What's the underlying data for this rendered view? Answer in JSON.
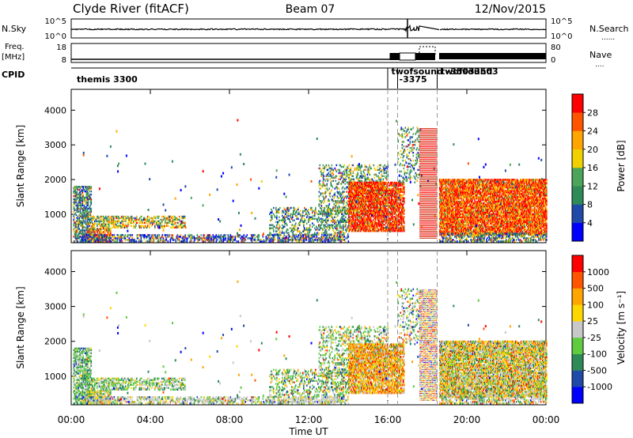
{
  "header": {
    "station": "Clyde River (fitACF)",
    "beam": "Beam 07",
    "date": "12/Nov/2015"
  },
  "noise_panel": {
    "left_label": "N.Sky",
    "right_label": "N.Search",
    "right_key": "......",
    "ticks": [
      "10^5",
      "10^0"
    ]
  },
  "freq_panel": {
    "left_label_1": "Freq.",
    "left_label_2": "[MHz]",
    "right_label": "Nave",
    "right_key": "....",
    "left_ticks": [
      "18",
      "8"
    ],
    "right_ticks": [
      "80",
      "0"
    ]
  },
  "cpid_panel": {
    "label": "CPID",
    "segments": [
      {
        "text": "themis 3300",
        "start": 0.2
      },
      {
        "text": "twofsound",
        "start": 16.1
      },
      {
        "text": "-3375",
        "start": 16.5
      },
      {
        "text": "twofsound",
        "start": 18.6
      },
      {
        "text": "-3503",
        "start": 18.9
      },
      {
        "text": "-3503",
        "start": 20.1
      }
    ]
  },
  "chart_data": [
    {
      "type": "heatmap",
      "name": "power",
      "ylabel": "Slant Range [km]",
      "ylim": [
        180,
        4600
      ],
      "yticks": [
        1000,
        2000,
        3000,
        4000
      ],
      "xlim": [
        0,
        24
      ],
      "colorbar": {
        "label": "Power [dB]",
        "ticks": [
          "4",
          "8",
          "12",
          "16",
          "20",
          "24",
          "28"
        ],
        "colors": [
          "#0000ff",
          "#1f4aa8",
          "#2e8b57",
          "#4aa55a",
          "#f0d000",
          "#ffa500",
          "#ff5500",
          "#ff0000"
        ]
      }
    },
    {
      "type": "heatmap",
      "name": "velocity",
      "ylabel": "Slant Range [km]",
      "xlabel": "Time UT",
      "ylim": [
        180,
        4600
      ],
      "yticks": [
        1000,
        2000,
        3000,
        4000
      ],
      "xlim": [
        0,
        24
      ],
      "xtick_labels": [
        "00:00",
        "04:00",
        "08:00",
        "12:00",
        "16:00",
        "20:00",
        "00:00"
      ],
      "colorbar": {
        "label": "Velocity [m s⁻¹]",
        "ticks": [
          "1000",
          "500",
          "100",
          "25",
          "-25",
          "-100",
          "-500",
          "-1000"
        ],
        "colors": [
          "#0000ff",
          "#1f4aa8",
          "#2e8b57",
          "#5fcc40",
          "#c8c8c8",
          "#ffd700",
          "#ffa500",
          "#ff5500",
          "#ff0000"
        ]
      }
    }
  ],
  "markers": {
    "dashed_times": [
      16.0,
      16.5,
      18.5
    ]
  }
}
